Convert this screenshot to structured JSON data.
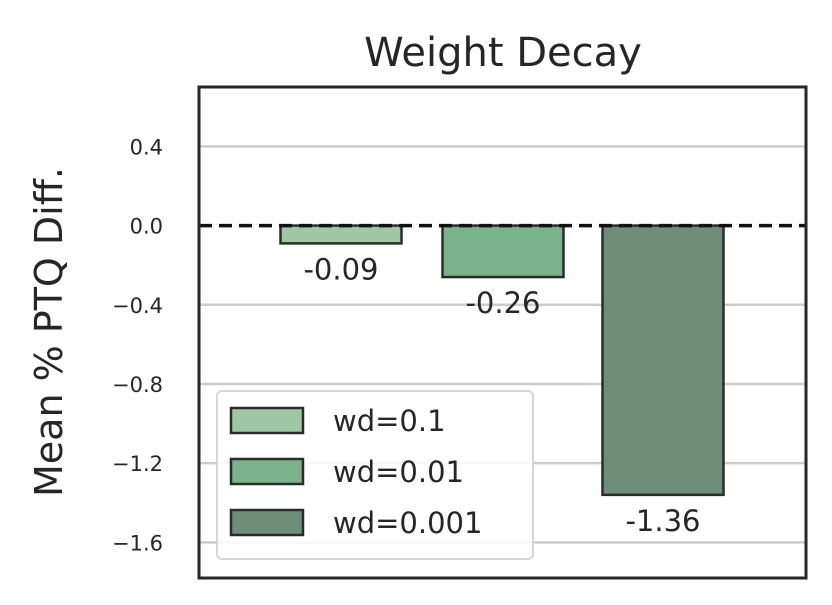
{
  "chart_data": {
    "type": "bar",
    "title": "Weight Decay",
    "xlabel": "",
    "ylabel": "Mean % PTQ Diff.",
    "ylim": [
      -1.78,
      0.7
    ],
    "yticks": [
      0.4,
      0.0,
      -0.4,
      -0.8,
      -1.2,
      -1.6
    ],
    "ytick_labels": [
      "0.4",
      "0.0",
      "−0.4",
      "−0.8",
      "−1.2",
      "−1.6"
    ],
    "grid": "horizontal",
    "reference_line": {
      "y": 0.0,
      "style": "dashed"
    },
    "legend_position": "lower-left",
    "series": [
      {
        "name": "wd=0.1",
        "value": -0.09,
        "label": "-0.09",
        "color": "#9fc7a3"
      },
      {
        "name": "wd=0.01",
        "value": -0.26,
        "label": "-0.26",
        "color": "#7bb38b"
      },
      {
        "name": "wd=0.001",
        "value": -1.36,
        "label": "-1.36",
        "color": "#6f8e7a"
      }
    ]
  }
}
